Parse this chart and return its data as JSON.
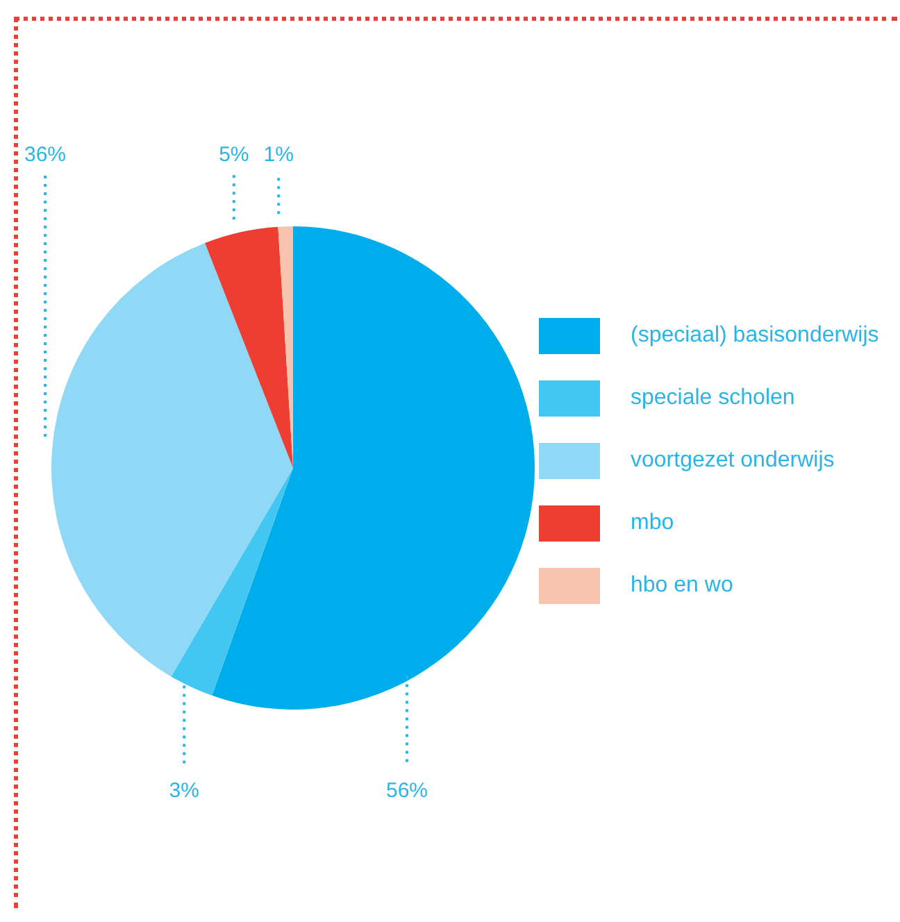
{
  "chart_data": {
    "type": "pie",
    "categories": [
      "(speciaal) basisonderwijs",
      "speciale scholen",
      "voortgezet onderwijs",
      "mbo",
      "hbo en wo"
    ],
    "values": [
      56,
      3,
      36,
      5,
      1
    ],
    "colors": [
      "#00adec",
      "#41c7f2",
      "#8fd8f6",
      "#ee3e33",
      "#f9c4ae"
    ],
    "value_labels": [
      "56%",
      "3%",
      "36%",
      "5%",
      "1%"
    ],
    "legend": "right"
  }
}
